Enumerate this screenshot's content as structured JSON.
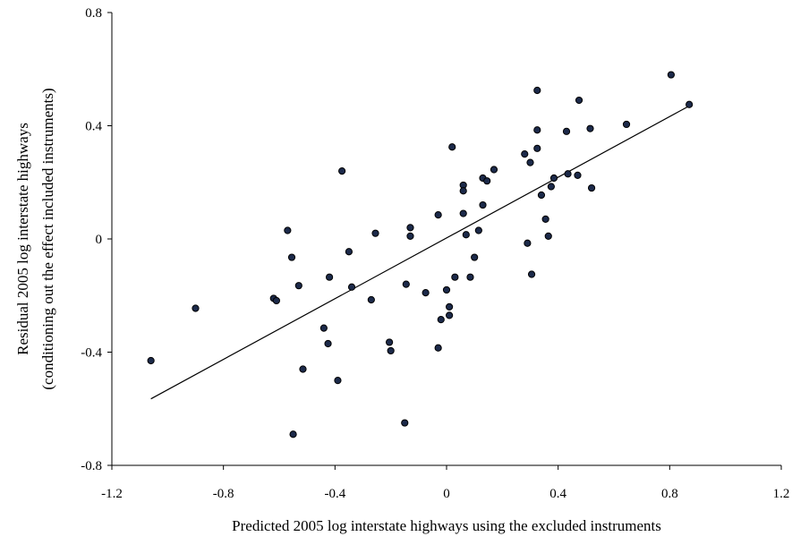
{
  "chart_data": {
    "type": "scatter",
    "title": "",
    "xlabel": "Predicted  2005 log interstate highways using the excluded instruments",
    "ylabel_lines": [
      "Residual 2005 log interstate highways",
      "(conditioning out  the effect included instruments)"
    ],
    "xlim": [
      -1.2,
      1.2
    ],
    "ylim": [
      -0.8,
      0.8
    ],
    "xticks": [
      "-1.2",
      "-0.8",
      "-0.4",
      "0",
      "0.4",
      "0.8",
      "1.2"
    ],
    "yticks": [
      "-0.8",
      "-0.4",
      "0",
      "0.4",
      "0.8"
    ],
    "grid": false,
    "legend": "none",
    "marker_color": "#1c2a4a",
    "line_color": "#000000",
    "fit_line": {
      "x": [
        -1.06,
        0.87
      ],
      "y": [
        -0.565,
        0.47
      ]
    },
    "points": [
      [
        -1.06,
        -0.43
      ],
      [
        -0.9,
        -0.245
      ],
      [
        -0.62,
        -0.21
      ],
      [
        -0.61,
        -0.218
      ],
      [
        -0.57,
        0.03
      ],
      [
        -0.555,
        -0.065
      ],
      [
        -0.55,
        -0.69
      ],
      [
        -0.53,
        -0.165
      ],
      [
        -0.515,
        -0.46
      ],
      [
        -0.42,
        -0.135
      ],
      [
        -0.425,
        -0.37
      ],
      [
        -0.44,
        -0.315
      ],
      [
        -0.39,
        -0.5
      ],
      [
        -0.375,
        0.24
      ],
      [
        -0.35,
        -0.045
      ],
      [
        -0.34,
        -0.17
      ],
      [
        -0.27,
        -0.215
      ],
      [
        -0.255,
        0.02
      ],
      [
        -0.205,
        -0.365
      ],
      [
        -0.2,
        -0.395
      ],
      [
        -0.15,
        -0.65
      ],
      [
        -0.145,
        -0.16
      ],
      [
        -0.13,
        0.04
      ],
      [
        -0.13,
        0.01
      ],
      [
        -0.075,
        -0.19
      ],
      [
        -0.03,
        0.085
      ],
      [
        -0.03,
        -0.385
      ],
      [
        -0.02,
        -0.285
      ],
      [
        0.0,
        -0.18
      ],
      [
        0.01,
        -0.24
      ],
      [
        0.01,
        -0.27
      ],
      [
        0.02,
        0.325
      ],
      [
        0.03,
        -0.135
      ],
      [
        0.06,
        0.19
      ],
      [
        0.06,
        0.17
      ],
      [
        0.06,
        0.09
      ],
      [
        0.07,
        0.015
      ],
      [
        0.085,
        -0.135
      ],
      [
        0.1,
        -0.065
      ],
      [
        0.115,
        0.03
      ],
      [
        0.13,
        0.12
      ],
      [
        0.13,
        0.215
      ],
      [
        0.145,
        0.205
      ],
      [
        0.17,
        0.245
      ],
      [
        0.28,
        0.3
      ],
      [
        0.29,
        -0.015
      ],
      [
        0.3,
        0.27
      ],
      [
        0.305,
        -0.125
      ],
      [
        0.325,
        0.525
      ],
      [
        0.325,
        0.385
      ],
      [
        0.325,
        0.32
      ],
      [
        0.34,
        0.155
      ],
      [
        0.355,
        0.07
      ],
      [
        0.365,
        0.01
      ],
      [
        0.375,
        0.185
      ],
      [
        0.385,
        0.215
      ],
      [
        0.43,
        0.38
      ],
      [
        0.435,
        0.23
      ],
      [
        0.47,
        0.225
      ],
      [
        0.475,
        0.49
      ],
      [
        0.515,
        0.39
      ],
      [
        0.52,
        0.18
      ],
      [
        0.645,
        0.405
      ],
      [
        0.805,
        0.58
      ],
      [
        0.87,
        0.475
      ]
    ]
  }
}
